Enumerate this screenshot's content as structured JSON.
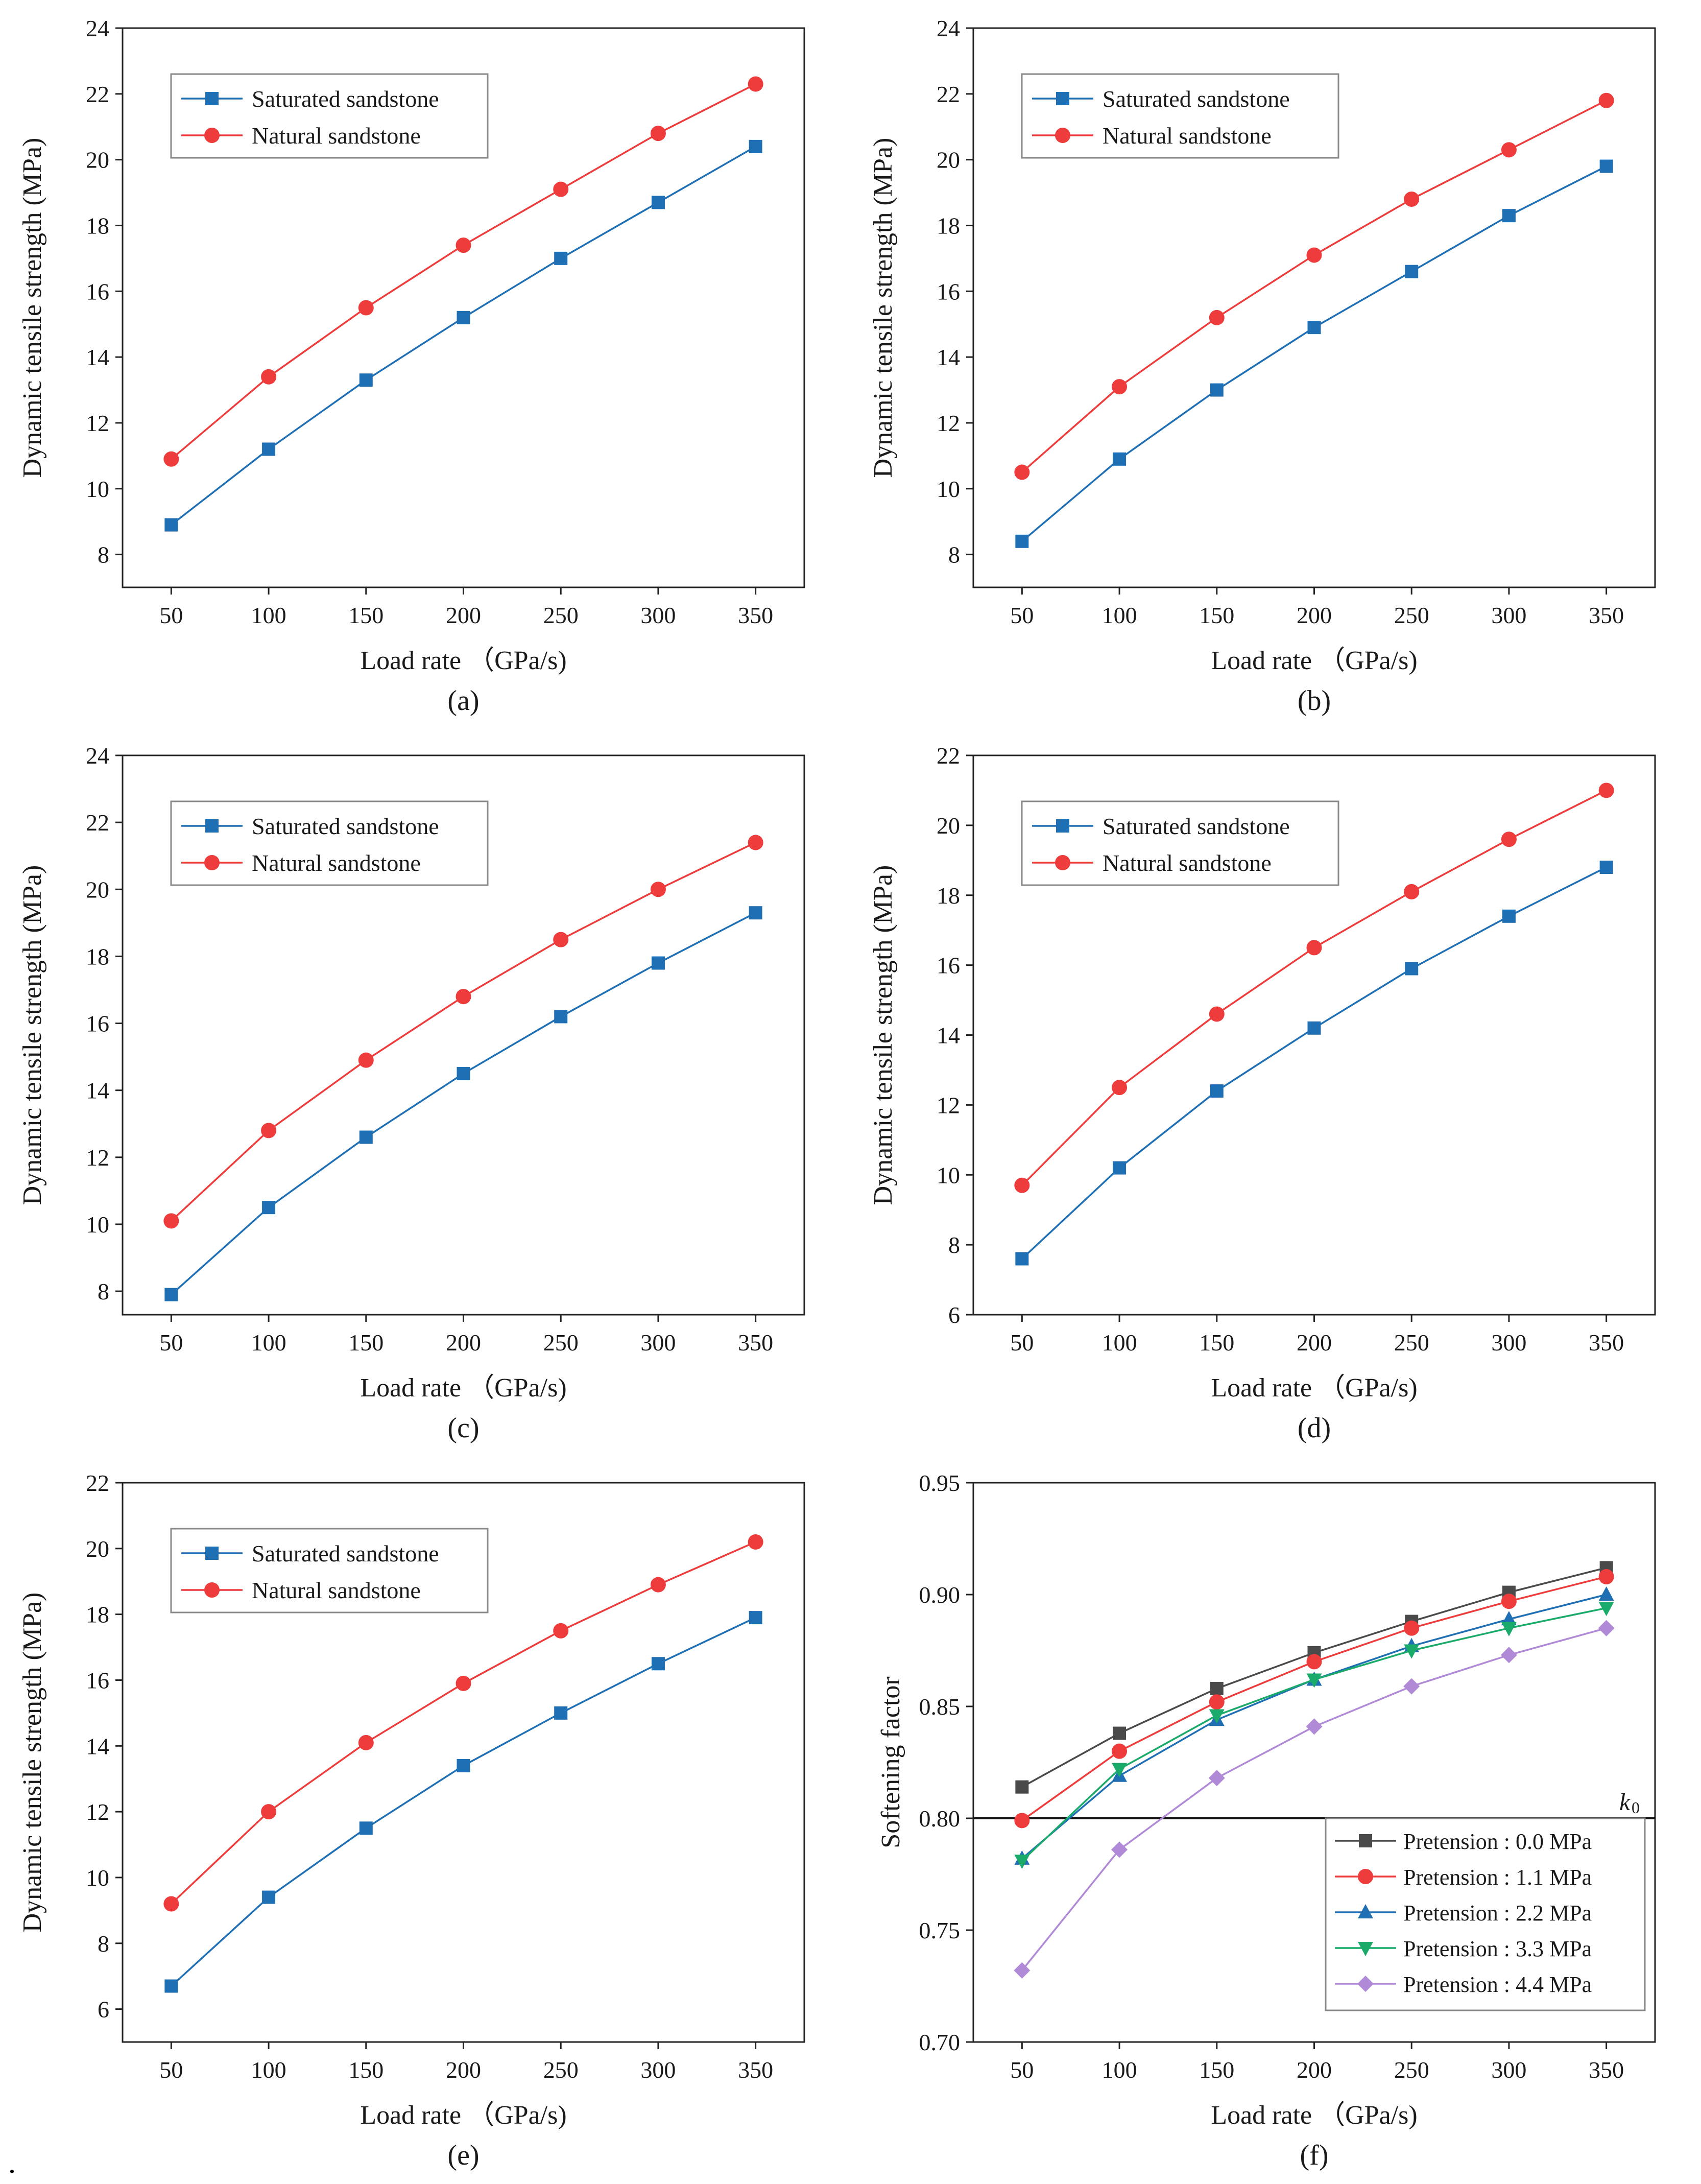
{
  "chart_data": [
    {
      "id": "a",
      "type": "line",
      "caption": "(a)",
      "xlabel": "Load rate （GPa/s)",
      "ylabel": "Dynamic tensile strength (MPa)",
      "x": [
        50,
        100,
        150,
        200,
        250,
        300,
        350
      ],
      "xlim": [
        25,
        375
      ],
      "ylim": [
        7,
        24
      ],
      "yticks": [
        8,
        10,
        12,
        14,
        16,
        18,
        20,
        22,
        24
      ],
      "ytick_decimals": 0,
      "legend_placement": "top-left",
      "series": [
        {
          "name": "Saturated sandstone",
          "values": [
            8.9,
            11.2,
            13.3,
            15.2,
            17.0,
            18.7,
            20.4
          ],
          "color": "#1f6fb5",
          "marker": "square"
        },
        {
          "name": "Natural sandstone",
          "values": [
            10.9,
            13.4,
            15.5,
            17.4,
            19.1,
            20.8,
            22.3
          ],
          "color": "#ee3b3b",
          "marker": "circle"
        }
      ]
    },
    {
      "id": "b",
      "type": "line",
      "caption": "(b)",
      "xlabel": "Load rate （GPa/s)",
      "ylabel": "Dynamic tensile strength (MPa)",
      "x": [
        50,
        100,
        150,
        200,
        250,
        300,
        350
      ],
      "xlim": [
        25,
        375
      ],
      "ylim": [
        7,
        24
      ],
      "yticks": [
        8,
        10,
        12,
        14,
        16,
        18,
        20,
        22,
        24
      ],
      "ytick_decimals": 0,
      "legend_placement": "top-left",
      "series": [
        {
          "name": "Saturated sandstone",
          "values": [
            8.4,
            10.9,
            13.0,
            14.9,
            16.6,
            18.3,
            19.8
          ],
          "color": "#1f6fb5",
          "marker": "square"
        },
        {
          "name": "Natural sandstone",
          "values": [
            10.5,
            13.1,
            15.2,
            17.1,
            18.8,
            20.3,
            21.8
          ],
          "color": "#ee3b3b",
          "marker": "circle"
        }
      ]
    },
    {
      "id": "c",
      "type": "line",
      "caption": "(c)",
      "xlabel": "Load rate （GPa/s)",
      "ylabel": "Dynamic tensile strength (MPa)",
      "x": [
        50,
        100,
        150,
        200,
        250,
        300,
        350
      ],
      "xlim": [
        25,
        375
      ],
      "ylim": [
        7.3,
        24
      ],
      "yticks": [
        8,
        10,
        12,
        14,
        16,
        18,
        20,
        22,
        24
      ],
      "ytick_decimals": 0,
      "legend_placement": "top-left",
      "series": [
        {
          "name": "Saturated sandstone",
          "values": [
            7.9,
            10.5,
            12.6,
            14.5,
            16.2,
            17.8,
            19.3
          ],
          "color": "#1f6fb5",
          "marker": "square"
        },
        {
          "name": "Natural sandstone",
          "values": [
            10.1,
            12.8,
            14.9,
            16.8,
            18.5,
            20.0,
            21.4
          ],
          "color": "#ee3b3b",
          "marker": "circle"
        }
      ]
    },
    {
      "id": "d",
      "type": "line",
      "caption": "(d)",
      "xlabel": "Load rate （GPa/s)",
      "ylabel": "Dynamic tensile strength (MPa)",
      "x": [
        50,
        100,
        150,
        200,
        250,
        300,
        350
      ],
      "xlim": [
        25,
        375
      ],
      "ylim": [
        6,
        22
      ],
      "yticks": [
        6,
        8,
        10,
        12,
        14,
        16,
        18,
        20,
        22
      ],
      "ytick_decimals": 0,
      "legend_placement": "top-left",
      "series": [
        {
          "name": "Saturated sandstone",
          "values": [
            7.6,
            10.2,
            12.4,
            14.2,
            15.9,
            17.4,
            18.8
          ],
          "color": "#1f6fb5",
          "marker": "square"
        },
        {
          "name": "Natural sandstone",
          "values": [
            9.7,
            12.5,
            14.6,
            16.5,
            18.1,
            19.6,
            21.0
          ],
          "color": "#ee3b3b",
          "marker": "circle"
        }
      ]
    },
    {
      "id": "e",
      "type": "line",
      "caption": "(e)",
      "xlabel": "Load rate （GPa/s)",
      "ylabel": "Dynamic tensile strength (MPa)",
      "x": [
        50,
        100,
        150,
        200,
        250,
        300,
        350
      ],
      "xlim": [
        25,
        375
      ],
      "ylim": [
        5,
        22
      ],
      "yticks": [
        6,
        8,
        10,
        12,
        14,
        16,
        18,
        20,
        22
      ],
      "ytick_decimals": 0,
      "legend_placement": "top-left",
      "series": [
        {
          "name": "Saturated sandstone",
          "values": [
            6.7,
            9.4,
            11.5,
            13.4,
            15.0,
            16.5,
            17.9
          ],
          "color": "#1f6fb5",
          "marker": "square"
        },
        {
          "name": "Natural sandstone",
          "values": [
            9.2,
            12.0,
            14.1,
            15.9,
            17.5,
            18.9,
            20.2
          ],
          "color": "#ee3b3b",
          "marker": "circle"
        }
      ]
    },
    {
      "id": "f",
      "type": "line",
      "caption": "(f)",
      "xlabel": "Load rate （GPa/s)",
      "ylabel": "Softening factor",
      "x": [
        50,
        100,
        150,
        200,
        250,
        300,
        350
      ],
      "xlim": [
        25,
        375
      ],
      "ylim": [
        0.7,
        0.95
      ],
      "yticks": [
        0.7,
        0.75,
        0.8,
        0.85,
        0.9,
        0.95
      ],
      "ytick_decimals": 2,
      "legend_placement": "bottom-right",
      "reference_line": {
        "value": 0.8,
        "label": "k",
        "label_sub": "0"
      },
      "series": [
        {
          "name": "Pretension : 0.0 MPa",
          "values": [
            0.814,
            0.838,
            0.858,
            0.874,
            0.888,
            0.901,
            0.912
          ],
          "color": "#4a4a4a",
          "marker": "square"
        },
        {
          "name": "Pretension : 1.1 MPa",
          "values": [
            0.799,
            0.83,
            0.852,
            0.87,
            0.885,
            0.897,
            0.908
          ],
          "color": "#ee3b3b",
          "marker": "circle"
        },
        {
          "name": "Pretension : 2.2 MPa",
          "values": [
            0.782,
            0.819,
            0.844,
            0.862,
            0.877,
            0.889,
            0.9
          ],
          "color": "#1f6fb5",
          "marker": "triangle-up"
        },
        {
          "name": "Pretension : 3.3 MPa",
          "values": [
            0.781,
            0.822,
            0.846,
            0.862,
            0.875,
            0.885,
            0.894
          ],
          "color": "#1aab6a",
          "marker": "triangle-down"
        },
        {
          "name": "Pretension : 4.4 MPa",
          "values": [
            0.732,
            0.786,
            0.818,
            0.841,
            0.859,
            0.873,
            0.885
          ],
          "color": "#b08ad6",
          "marker": "diamond"
        }
      ]
    }
  ],
  "trailing_mark": "."
}
